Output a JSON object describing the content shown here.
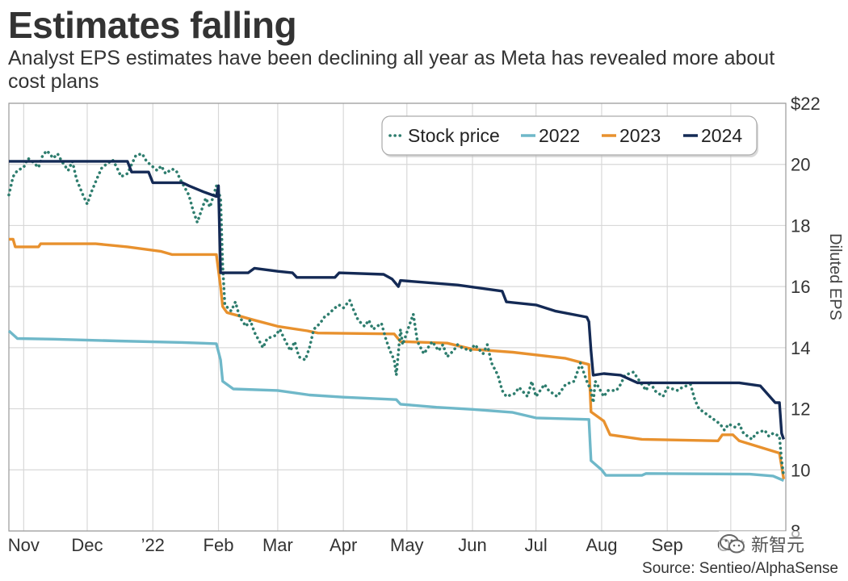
{
  "title": "Estimates falling",
  "subtitle": "Analyst EPS estimates have been declining all year as Meta has revealed more about cost plans",
  "source": "Source: Sentieo/AlphaSense",
  "watermark_text": "新智元",
  "watermark_icon": "wechat-icon",
  "colors": {
    "stock": "#2e7d6e",
    "y2022": "#6fb8c9",
    "y2023": "#e8912e",
    "y2024": "#142a55",
    "grid": "#d8d8d8",
    "frame": "#999999"
  },
  "chart_data": {
    "type": "line",
    "title": "Estimates falling",
    "subtitle": "Analyst EPS estimates have been declining all year as Meta has revealed more about cost plans",
    "ylabel": "Diluted EPS",
    "xlabel": "",
    "ylim": [
      8,
      22
    ],
    "yticks": [
      8,
      10,
      12,
      14,
      16,
      18,
      20,
      22
    ],
    "ytick_labels": [
      "8",
      "10",
      "12",
      "14",
      "16",
      "18",
      "20",
      "$22"
    ],
    "xlim": [
      "2021-10-25",
      "2022-10-27"
    ],
    "xticks": [
      "2021-11-01",
      "2021-12-01",
      "2022-01-01",
      "2022-02-01",
      "2022-03-01",
      "2022-04-01",
      "2022-05-01",
      "2022-06-01",
      "2022-07-01",
      "2022-08-01",
      "2022-09-01",
      "2022-10-01"
    ],
    "xtick_labels": [
      "Nov",
      "Dec",
      "’22",
      "Feb",
      "Mar",
      "Apr",
      "May",
      "Jun",
      "Jul",
      "Aug",
      "Sep",
      "Oct"
    ],
    "grid": true,
    "legend_position": "top-right",
    "series": [
      {
        "name": "Stock price",
        "style": "dotted",
        "points": [
          [
            "2021-10-25",
            19.0
          ],
          [
            "2021-10-27",
            19.6
          ],
          [
            "2021-10-29",
            19.8
          ],
          [
            "2021-11-01",
            19.9
          ],
          [
            "2021-11-03",
            20.2
          ],
          [
            "2021-11-05",
            20.1
          ],
          [
            "2021-11-08",
            19.9
          ],
          [
            "2021-11-10",
            20.3
          ],
          [
            "2021-11-12",
            20.45
          ],
          [
            "2021-11-15",
            20.2
          ],
          [
            "2021-11-17",
            20.35
          ],
          [
            "2021-11-19",
            20.1
          ],
          [
            "2021-11-22",
            19.8
          ],
          [
            "2021-11-24",
            20.1
          ],
          [
            "2021-11-26",
            19.5
          ],
          [
            "2021-11-29",
            19.0
          ],
          [
            "2021-12-01",
            18.7
          ],
          [
            "2021-12-03",
            19.1
          ],
          [
            "2021-12-06",
            19.6
          ],
          [
            "2021-12-08",
            19.9
          ],
          [
            "2021-12-10",
            20.0
          ],
          [
            "2021-12-13",
            20.15
          ],
          [
            "2021-12-15",
            19.9
          ],
          [
            "2021-12-17",
            19.6
          ],
          [
            "2021-12-20",
            19.7
          ],
          [
            "2021-12-22",
            20.0
          ],
          [
            "2021-12-24",
            20.3
          ],
          [
            "2021-12-27",
            20.35
          ],
          [
            "2021-12-29",
            20.1
          ],
          [
            "2022-01-03",
            19.8
          ],
          [
            "2022-01-05",
            19.95
          ],
          [
            "2022-01-07",
            19.7
          ],
          [
            "2022-01-10",
            19.85
          ],
          [
            "2022-01-12",
            19.8
          ],
          [
            "2022-01-14",
            19.5
          ],
          [
            "2022-01-18",
            19.0
          ],
          [
            "2022-01-20",
            18.5
          ],
          [
            "2022-01-22",
            18.1
          ],
          [
            "2022-01-24",
            18.5
          ],
          [
            "2022-01-26",
            18.9
          ],
          [
            "2022-01-28",
            18.6
          ],
          [
            "2022-01-31",
            19.3
          ],
          [
            "2022-02-02",
            18.9
          ],
          [
            "2022-02-03",
            16.7
          ],
          [
            "2022-02-04",
            15.4
          ],
          [
            "2022-02-07",
            15.2
          ],
          [
            "2022-02-09",
            15.5
          ],
          [
            "2022-02-11",
            15.0
          ],
          [
            "2022-02-14",
            14.7
          ],
          [
            "2022-02-16",
            14.9
          ],
          [
            "2022-02-18",
            14.5
          ],
          [
            "2022-02-22",
            14.0
          ],
          [
            "2022-02-24",
            14.3
          ],
          [
            "2022-02-28",
            14.4
          ],
          [
            "2022-03-02",
            14.6
          ],
          [
            "2022-03-04",
            14.3
          ],
          [
            "2022-03-07",
            13.9
          ],
          [
            "2022-03-09",
            14.2
          ],
          [
            "2022-03-11",
            13.7
          ],
          [
            "2022-03-14",
            13.6
          ],
          [
            "2022-03-16",
            14.0
          ],
          [
            "2022-03-18",
            14.6
          ],
          [
            "2022-03-21",
            14.8
          ],
          [
            "2022-03-23",
            15.0
          ],
          [
            "2022-03-25",
            15.1
          ],
          [
            "2022-03-28",
            15.3
          ],
          [
            "2022-03-30",
            15.4
          ],
          [
            "2022-04-01",
            15.3
          ],
          [
            "2022-04-04",
            15.55
          ],
          [
            "2022-04-06",
            15.2
          ],
          [
            "2022-04-08",
            14.9
          ],
          [
            "2022-04-11",
            14.7
          ],
          [
            "2022-04-13",
            14.9
          ],
          [
            "2022-04-15",
            14.6
          ],
          [
            "2022-04-19",
            14.8
          ],
          [
            "2022-04-21",
            14.3
          ],
          [
            "2022-04-23",
            13.9
          ],
          [
            "2022-04-25",
            13.6
          ],
          [
            "2022-04-26",
            13.1
          ],
          [
            "2022-04-28",
            14.6
          ],
          [
            "2022-04-29",
            14.1
          ],
          [
            "2022-05-02",
            14.7
          ],
          [
            "2022-05-04",
            15.1
          ],
          [
            "2022-05-06",
            14.2
          ],
          [
            "2022-05-09",
            13.8
          ],
          [
            "2022-05-11",
            14.0
          ],
          [
            "2022-05-13",
            14.2
          ],
          [
            "2022-05-16",
            13.9
          ],
          [
            "2022-05-18",
            14.1
          ],
          [
            "2022-05-20",
            13.7
          ],
          [
            "2022-05-23",
            13.9
          ],
          [
            "2022-05-25",
            14.1
          ],
          [
            "2022-05-27",
            14.0
          ],
          [
            "2022-05-31",
            13.9
          ],
          [
            "2022-06-02",
            14.1
          ],
          [
            "2022-06-06",
            13.8
          ],
          [
            "2022-06-08",
            14.1
          ],
          [
            "2022-06-10",
            13.5
          ],
          [
            "2022-06-13",
            13.1
          ],
          [
            "2022-06-15",
            12.6
          ],
          [
            "2022-06-17",
            12.4
          ],
          [
            "2022-06-21",
            12.5
          ],
          [
            "2022-06-23",
            12.7
          ],
          [
            "2022-06-27",
            12.4
          ],
          [
            "2022-06-29",
            12.9
          ],
          [
            "2022-07-01",
            12.4
          ],
          [
            "2022-07-05",
            12.8
          ],
          [
            "2022-07-07",
            12.6
          ],
          [
            "2022-07-11",
            12.4
          ],
          [
            "2022-07-13",
            12.6
          ],
          [
            "2022-07-15",
            12.8
          ],
          [
            "2022-07-19",
            12.9
          ],
          [
            "2022-07-21",
            13.3
          ],
          [
            "2022-07-22",
            13.5
          ],
          [
            "2022-07-25",
            12.9
          ],
          [
            "2022-07-27",
            12.6
          ],
          [
            "2022-07-28",
            12.2
          ],
          [
            "2022-07-29",
            12.9
          ],
          [
            "2022-08-02",
            12.4
          ],
          [
            "2022-08-04",
            12.6
          ],
          [
            "2022-08-08",
            12.6
          ],
          [
            "2022-08-10",
            12.8
          ],
          [
            "2022-08-12",
            13.1
          ],
          [
            "2022-08-16",
            13.2
          ],
          [
            "2022-08-18",
            13.0
          ],
          [
            "2022-08-22",
            12.6
          ],
          [
            "2022-08-24",
            12.9
          ],
          [
            "2022-08-26",
            12.6
          ],
          [
            "2022-08-30",
            12.4
          ],
          [
            "2022-09-01",
            12.7
          ],
          [
            "2022-09-06",
            12.6
          ],
          [
            "2022-09-08",
            12.7
          ],
          [
            "2022-09-12",
            12.8
          ],
          [
            "2022-09-14",
            12.3
          ],
          [
            "2022-09-16",
            12.0
          ],
          [
            "2022-09-20",
            11.8
          ],
          [
            "2022-09-22",
            11.7
          ],
          [
            "2022-09-26",
            11.5
          ],
          [
            "2022-09-28",
            11.3
          ],
          [
            "2022-09-30",
            11.5
          ],
          [
            "2022-10-03",
            11.4
          ],
          [
            "2022-10-05",
            11.5
          ],
          [
            "2022-10-07",
            11.2
          ],
          [
            "2022-10-11",
            11.0
          ],
          [
            "2022-10-13",
            11.2
          ],
          [
            "2022-10-17",
            11.3
          ],
          [
            "2022-10-19",
            11.1
          ],
          [
            "2022-10-21",
            11.2
          ],
          [
            "2022-10-24",
            11.1
          ],
          [
            "2022-10-25",
            10.3
          ],
          [
            "2022-10-26",
            9.8
          ]
        ]
      },
      {
        "name": "2022",
        "style": "solid",
        "points": [
          [
            "2021-10-25",
            14.55
          ],
          [
            "2021-10-29",
            14.3
          ],
          [
            "2021-11-15",
            14.28
          ],
          [
            "2021-12-15",
            14.22
          ],
          [
            "2022-01-15",
            14.17
          ],
          [
            "2022-01-31",
            14.13
          ],
          [
            "2022-02-02",
            13.6
          ],
          [
            "2022-02-03",
            12.9
          ],
          [
            "2022-02-08",
            12.65
          ],
          [
            "2022-03-01",
            12.6
          ],
          [
            "2022-03-16",
            12.45
          ],
          [
            "2022-04-01",
            12.38
          ],
          [
            "2022-04-26",
            12.3
          ],
          [
            "2022-04-28",
            12.15
          ],
          [
            "2022-05-15",
            12.05
          ],
          [
            "2022-06-01",
            11.98
          ],
          [
            "2022-06-20",
            11.88
          ],
          [
            "2022-07-01",
            11.7
          ],
          [
            "2022-07-26",
            11.65
          ],
          [
            "2022-07-27",
            10.3
          ],
          [
            "2022-08-01",
            10.0
          ],
          [
            "2022-08-03",
            9.82
          ],
          [
            "2022-08-20",
            9.82
          ],
          [
            "2022-08-22",
            9.88
          ],
          [
            "2022-10-10",
            9.86
          ],
          [
            "2022-10-21",
            9.8
          ],
          [
            "2022-10-26",
            9.65
          ]
        ]
      },
      {
        "name": "2023",
        "style": "solid",
        "points": [
          [
            "2021-10-25",
            17.55
          ],
          [
            "2021-10-27",
            17.55
          ],
          [
            "2021-10-28",
            17.3
          ],
          [
            "2021-11-08",
            17.3
          ],
          [
            "2021-11-09",
            17.4
          ],
          [
            "2021-12-05",
            17.4
          ],
          [
            "2021-12-20",
            17.3
          ],
          [
            "2022-01-05",
            17.15
          ],
          [
            "2022-01-10",
            17.05
          ],
          [
            "2022-01-31",
            17.05
          ],
          [
            "2022-02-02",
            16.0
          ],
          [
            "2022-02-03",
            15.35
          ],
          [
            "2022-02-05",
            15.15
          ],
          [
            "2022-02-18",
            14.9
          ],
          [
            "2022-03-01",
            14.7
          ],
          [
            "2022-03-15",
            14.55
          ],
          [
            "2022-03-20",
            14.48
          ],
          [
            "2022-04-25",
            14.45
          ],
          [
            "2022-04-28",
            14.2
          ],
          [
            "2022-05-20",
            14.15
          ],
          [
            "2022-06-01",
            13.95
          ],
          [
            "2022-06-20",
            13.85
          ],
          [
            "2022-07-15",
            13.65
          ],
          [
            "2022-07-26",
            13.45
          ],
          [
            "2022-07-27",
            11.9
          ],
          [
            "2022-08-02",
            11.6
          ],
          [
            "2022-08-05",
            11.15
          ],
          [
            "2022-08-20",
            11.0
          ],
          [
            "2022-09-25",
            10.95
          ],
          [
            "2022-09-27",
            11.15
          ],
          [
            "2022-10-02",
            11.15
          ],
          [
            "2022-10-05",
            10.95
          ],
          [
            "2022-10-24",
            10.55
          ],
          [
            "2022-10-26",
            9.7
          ]
        ]
      },
      {
        "name": "2024",
        "style": "solid",
        "points": [
          [
            "2021-10-25",
            20.1
          ],
          [
            "2021-12-20",
            20.1
          ],
          [
            "2021-12-22",
            19.75
          ],
          [
            "2021-12-30",
            19.75
          ],
          [
            "2022-01-01",
            19.4
          ],
          [
            "2022-01-15",
            19.4
          ],
          [
            "2022-01-18",
            19.3
          ],
          [
            "2022-01-25",
            19.1
          ],
          [
            "2022-01-31",
            18.95
          ],
          [
            "2022-02-01",
            19.3
          ],
          [
            "2022-02-02",
            16.45
          ],
          [
            "2022-02-15",
            16.45
          ],
          [
            "2022-02-18",
            16.6
          ],
          [
            "2022-03-01",
            16.5
          ],
          [
            "2022-03-08",
            16.45
          ],
          [
            "2022-03-10",
            16.3
          ],
          [
            "2022-03-28",
            16.3
          ],
          [
            "2022-03-30",
            16.45
          ],
          [
            "2022-04-20",
            16.4
          ],
          [
            "2022-04-24",
            16.25
          ],
          [
            "2022-04-27",
            16.0
          ],
          [
            "2022-04-28",
            16.2
          ],
          [
            "2022-05-25",
            16.05
          ],
          [
            "2022-06-15",
            15.85
          ],
          [
            "2022-06-17",
            15.5
          ],
          [
            "2022-07-01",
            15.4
          ],
          [
            "2022-07-10",
            15.2
          ],
          [
            "2022-07-25",
            15.0
          ],
          [
            "2022-07-26",
            14.85
          ],
          [
            "2022-07-27",
            13.9
          ],
          [
            "2022-07-28",
            13.1
          ],
          [
            "2022-08-02",
            13.15
          ],
          [
            "2022-08-10",
            13.1
          ],
          [
            "2022-08-18",
            12.85
          ],
          [
            "2022-10-05",
            12.85
          ],
          [
            "2022-10-15",
            12.75
          ],
          [
            "2022-10-22",
            12.2
          ],
          [
            "2022-10-24",
            12.2
          ],
          [
            "2022-10-25",
            11.2
          ],
          [
            "2022-10-26",
            11.0
          ]
        ]
      }
    ]
  }
}
